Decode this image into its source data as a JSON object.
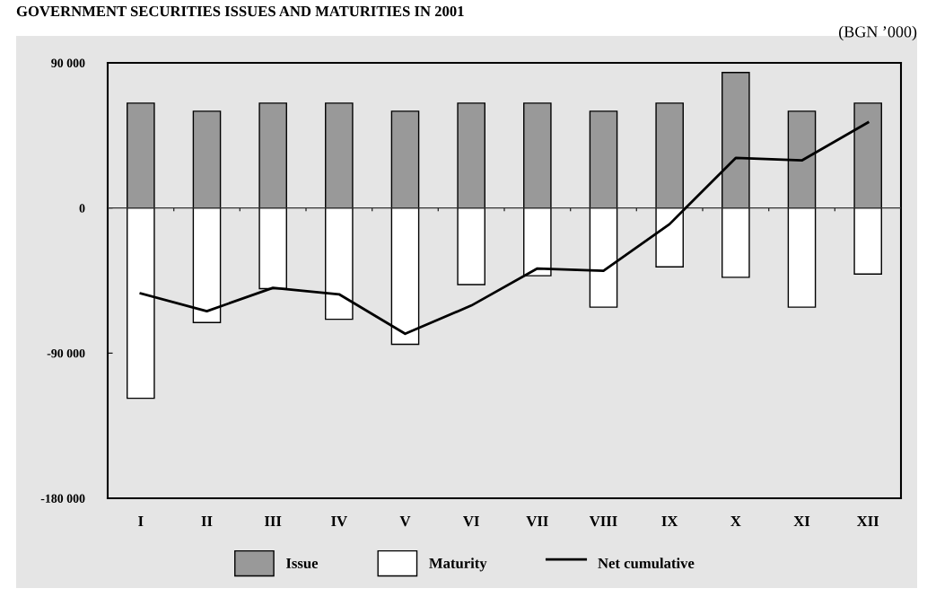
{
  "chart_data": {
    "type": "bar",
    "title": "GOVERNMENT SECURITIES ISSUES AND MATURITIES IN 2001",
    "subtitle": "(BGN ’000)",
    "categories": [
      "I",
      "II",
      "III",
      "IV",
      "V",
      "VI",
      "VII",
      "VIII",
      "IX",
      "X",
      "XI",
      "XII"
    ],
    "stacked": true,
    "series": [
      {
        "name": "Issue",
        "color": "#999999",
        "values": [
          65000,
          60000,
          65000,
          65000,
          60000,
          65000,
          65000,
          60000,
          65000,
          84000,
          60000,
          65000
        ]
      },
      {
        "name": "Maturity",
        "color": "#ffffff",
        "values": [
          -118000,
          -71000,
          -50000,
          -69000,
          -84500,
          -47500,
          -42000,
          -61500,
          -36500,
          -43000,
          -61500,
          -41000
        ]
      },
      {
        "name": "Net cumulative",
        "type": "line",
        "color": "#000000",
        "values": [
          -53000,
          -64000,
          -49500,
          -53500,
          -78000,
          -60500,
          -37500,
          -39000,
          -10000,
          31000,
          29500,
          53000
        ]
      }
    ],
    "ylim": [
      -180000,
      90000
    ],
    "yticks": [
      {
        "value": -180000,
        "label": "-180 000"
      },
      {
        "value": -90000,
        "label": "-90 000"
      },
      0,
      {
        "value": 90000,
        "label": "90 000"
      }
    ],
    "ref_lines": [
      {
        "axis": "y",
        "value": 0,
        "color": "#333333"
      }
    ],
    "legend": "bottom",
    "marker": "none",
    "line_style": "solid"
  }
}
